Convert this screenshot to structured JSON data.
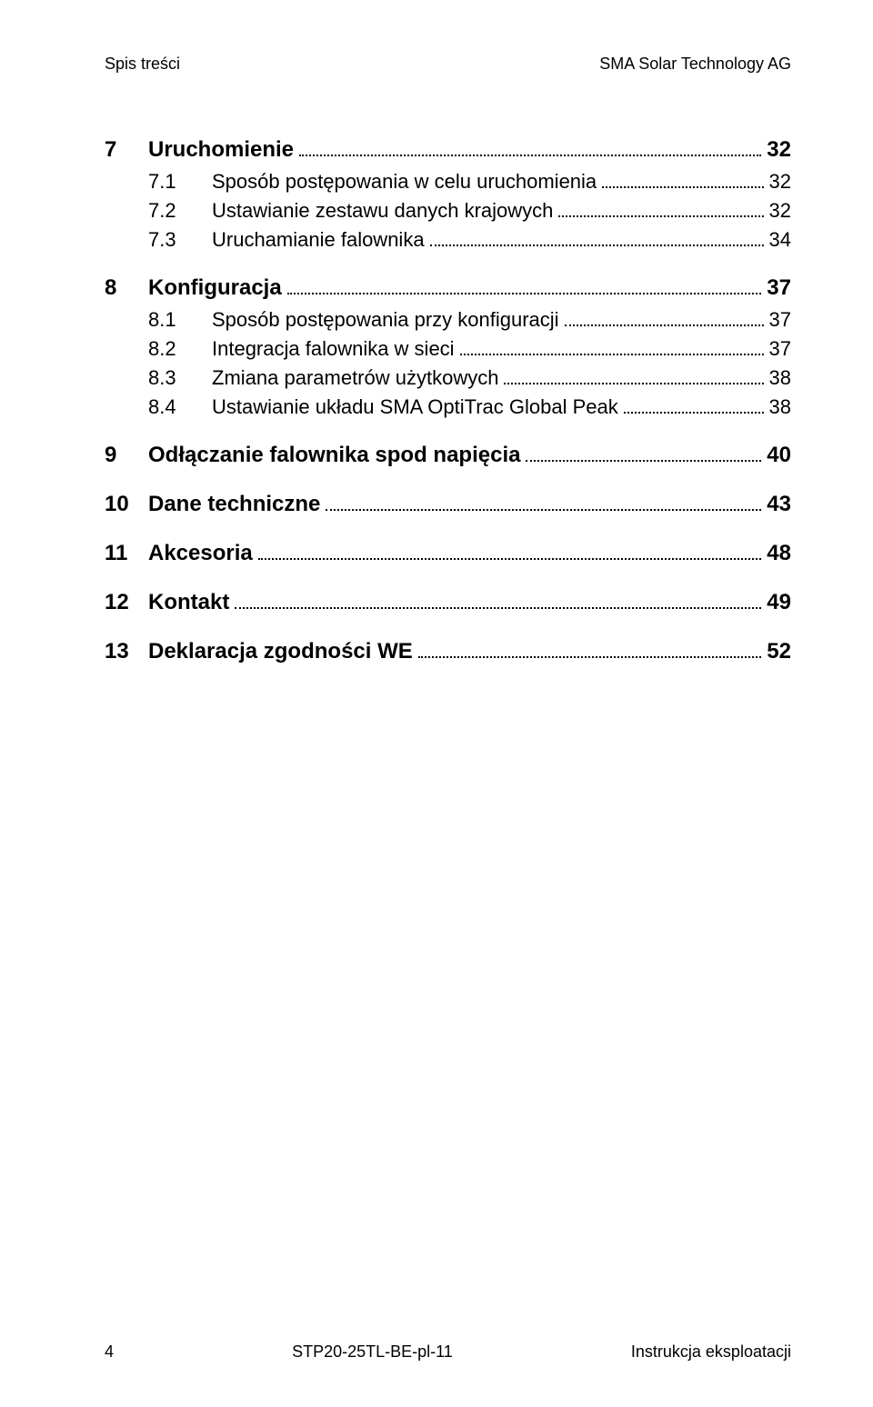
{
  "header": {
    "left": "Spis treści",
    "right": "SMA Solar Technology AG"
  },
  "toc": [
    {
      "level": "ch",
      "num": "7",
      "title": "Uruchomienie",
      "page": "32"
    },
    {
      "level": "sub",
      "num": "7.1",
      "title": "Sposób postępowania w celu uruchomienia",
      "page": "32"
    },
    {
      "level": "sub",
      "num": "7.2",
      "title": "Ustawianie zestawu danych krajowych",
      "page": "32"
    },
    {
      "level": "sub",
      "num": "7.3",
      "title": "Uruchamianie falownika",
      "page": "34"
    },
    {
      "level": "ch",
      "num": "8",
      "title": "Konfiguracja",
      "page": "37"
    },
    {
      "level": "sub",
      "num": "8.1",
      "title": "Sposób postępowania przy konfiguracji",
      "page": "37"
    },
    {
      "level": "sub",
      "num": "8.2",
      "title": "Integracja falownika w sieci",
      "page": "37"
    },
    {
      "level": "sub",
      "num": "8.3",
      "title": "Zmiana parametrów użytkowych",
      "page": "38"
    },
    {
      "level": "sub",
      "num": "8.4",
      "title": "Ustawianie układu SMA OptiTrac Global Peak",
      "page": "38"
    },
    {
      "level": "ch",
      "num": "9",
      "title": "Odłączanie falownika spod napięcia",
      "page": "40"
    },
    {
      "level": "ch",
      "num": "10",
      "title": "Dane techniczne",
      "page": "43"
    },
    {
      "level": "ch",
      "num": "11",
      "title": "Akcesoria",
      "page": "48"
    },
    {
      "level": "ch",
      "num": "12",
      "title": "Kontakt",
      "page": "49"
    },
    {
      "level": "ch",
      "num": "13",
      "title": "Deklaracja zgodności WE",
      "page": "52"
    }
  ],
  "footer": {
    "page_num": "4",
    "doc_code": "STP20-25TL-BE-pl-11",
    "doc_type": "Instrukcja eksploatacji"
  }
}
